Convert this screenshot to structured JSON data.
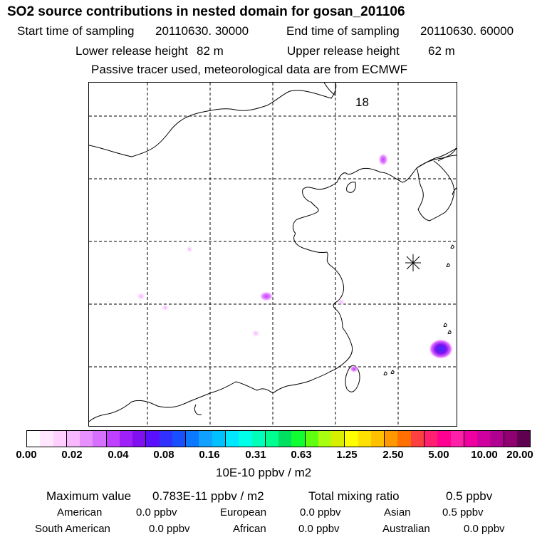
{
  "title": "SO2 source contributions in nested domain for gosan_201106",
  "header": {
    "start_label": "Start time of sampling",
    "start_value": "20110630. 30000",
    "end_label": "End time of sampling",
    "end_value": "20110630. 60000",
    "lower_label": "Lower release height",
    "lower_value": "82 m",
    "upper_label": "Upper release height",
    "upper_value": "62 m",
    "note": "Passive tracer used, meteorological data are from ECMWF"
  },
  "map": {
    "hour_label": "18",
    "receptor_name": "gosan",
    "plumes": [
      {
        "name": "plume-north-korea",
        "level": 0.04
      },
      {
        "name": "plume-inland-small",
        "level": 0.02
      },
      {
        "name": "plume-west-1",
        "level": 0.02
      },
      {
        "name": "plume-west-2",
        "level": 0.01
      },
      {
        "name": "plume-central",
        "level": 0.06
      },
      {
        "name": "plume-south-central",
        "level": 0.02
      },
      {
        "name": "plume-shanghai",
        "level": 0.02
      },
      {
        "name": "plume-taiwan",
        "level": 0.02
      },
      {
        "name": "plume-okinawa",
        "level": 0.08
      }
    ]
  },
  "colorbar": {
    "colors": [
      "#ffffff",
      "#ffe8ff",
      "#ffd0ff",
      "#f7b8ff",
      "#e890ff",
      "#d870ff",
      "#c040ff",
      "#a020f8",
      "#8010f0",
      "#5a10ff",
      "#3030ff",
      "#1850ff",
      "#0a78ff",
      "#10a0ff",
      "#00c0ff",
      "#00e8ff",
      "#00ffe8",
      "#00ffb8",
      "#00ff90",
      "#00e060",
      "#10ff30",
      "#60ff10",
      "#a8ff10",
      "#d8f000",
      "#ffff00",
      "#ffe000",
      "#ffc000",
      "#ff9800",
      "#ff7000",
      "#ff4040",
      "#ff2070",
      "#ff0090",
      "#ff20a8",
      "#f000a0",
      "#d000a0",
      "#b00090",
      "#900070",
      "#600050"
    ],
    "ticks": [
      "0.00",
      "0.02",
      "0.04",
      "0.08",
      "0.16",
      "0.31",
      "0.63",
      "1.25",
      "2.50",
      "5.00",
      "10.00",
      "20.00"
    ],
    "unit": "10E-10 ppbv / m2"
  },
  "summary": {
    "max_label": "Maximum value",
    "max_value": "0.783E-11 ppbv / m2",
    "total_label": "Total mixing ratio",
    "total_value": "0.5 ppbv",
    "regions": [
      {
        "name": "American",
        "value": "0.0 ppbv"
      },
      {
        "name": "European",
        "value": "0.0 ppbv"
      },
      {
        "name": "Asian",
        "value": "0.5 ppbv"
      },
      {
        "name": "South American",
        "value": "0.0 ppbv"
      },
      {
        "name": "African",
        "value": "0.0 ppbv"
      },
      {
        "name": "Australian",
        "value": "0.0 ppbv"
      }
    ]
  }
}
